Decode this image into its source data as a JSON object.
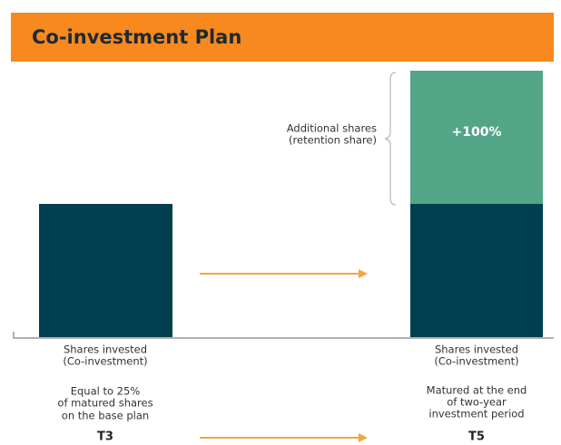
{
  "header": {
    "title": "Co-investment Plan"
  },
  "columns": [
    {
      "bar_label": [
        "Shares invested",
        "(Co-investment)"
      ],
      "description": [
        "Equal to 25%",
        "of matured shares",
        "on the base plan"
      ],
      "period": "T3"
    },
    {
      "bar_label": [
        "Shares invested",
        "(Co-investment)"
      ],
      "description": [
        "Matured at the end",
        "of two-year",
        "investment period"
      ],
      "period": "T5"
    }
  ],
  "retention": {
    "label": [
      "Additional shares",
      "(retention share)"
    ],
    "badge": "+100%"
  }
}
